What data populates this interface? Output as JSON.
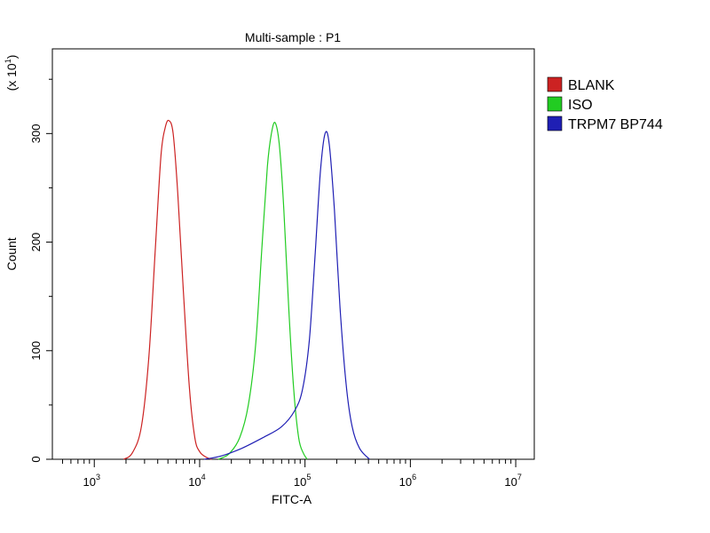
{
  "chart_data": {
    "type": "line",
    "title": "Multi-sample : P1",
    "xlabel": "FITC-A",
    "ylabel": "Count",
    "y_multiplier_label": {
      "prefix": "(x 10",
      "exponent": "1",
      "suffix": ")"
    },
    "x_scale": "log",
    "xlim": [
      400,
      15000000
    ],
    "ylim": [
      0,
      37.8
    ],
    "x_ticks": [
      {
        "value": 1000,
        "base": "10",
        "exp": "3"
      },
      {
        "value": 10000,
        "base": "10",
        "exp": "4"
      },
      {
        "value": 100000,
        "base": "10",
        "exp": "5"
      },
      {
        "value": 1000000,
        "base": "10",
        "exp": "6"
      },
      {
        "value": 10000000,
        "base": "10",
        "exp": "7"
      }
    ],
    "y_ticks": [
      {
        "value": 0,
        "label": "0"
      },
      {
        "value": 10,
        "label": "100"
      },
      {
        "value": 20,
        "label": "200"
      },
      {
        "value": 30,
        "label": "300"
      }
    ],
    "grid": false,
    "legend_position": "right",
    "series": [
      {
        "name": "BLANK",
        "color": "#cc2222",
        "x": [
          1900,
          2300,
          2800,
          3300,
          3800,
          4300,
          4700,
          5100,
          5600,
          6200,
          7000,
          8000,
          9000,
          10000,
          11500,
          13000
        ],
        "y": [
          0,
          0.6,
          3.0,
          9.5,
          19.5,
          28.0,
          30.5,
          31.2,
          30.0,
          24.5,
          15.5,
          6.5,
          2.0,
          0.7,
          0.2,
          0
        ]
      },
      {
        "name": "ISO",
        "color": "#22cc22",
        "x": [
          15000,
          19000,
          24000,
          29000,
          34000,
          39000,
          44000,
          48000,
          52000,
          57000,
          63000,
          70000,
          78000,
          87000,
          96000,
          105000
        ],
        "y": [
          0,
          0.5,
          2.0,
          5.0,
          10.5,
          19.5,
          27.0,
          30.0,
          31.0,
          29.0,
          23.0,
          14.0,
          6.5,
          2.0,
          0.6,
          0
        ]
      },
      {
        "name": "TRPM7 BP744",
        "color": "#1f1fb4",
        "x": [
          11000,
          16000,
          25000,
          40000,
          60000,
          80000,
          95000,
          110000,
          125000,
          140000,
          155000,
          170000,
          190000,
          215000,
          245000,
          280000,
          330000,
          410000
        ],
        "y": [
          0,
          0.3,
          1.0,
          2.0,
          3.0,
          4.5,
          6.5,
          11.0,
          19.0,
          26.5,
          30.0,
          29.0,
          23.0,
          14.0,
          7.0,
          3.0,
          1.0,
          0
        ]
      }
    ]
  }
}
